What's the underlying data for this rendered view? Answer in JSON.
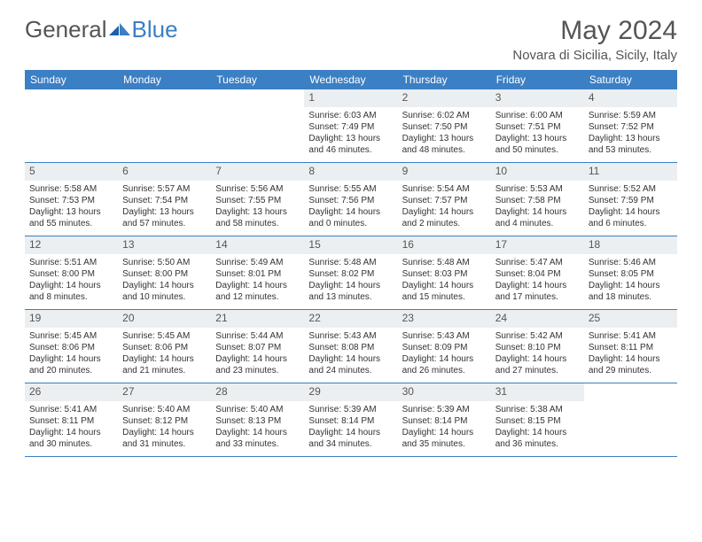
{
  "brand": {
    "part1": "General",
    "part2": "Blue"
  },
  "title": "May 2024",
  "location": "Novara di Sicilia, Sicily, Italy",
  "colors": {
    "header_bg": "#3b7fc4",
    "daynum_bg": "#eceff1",
    "border": "#3b7fc4",
    "text": "#333333",
    "muted": "#555555"
  },
  "day_headers": [
    "Sunday",
    "Monday",
    "Tuesday",
    "Wednesday",
    "Thursday",
    "Friday",
    "Saturday"
  ],
  "weeks": [
    [
      {
        "n": "",
        "sr": "",
        "ss": "",
        "dl": ""
      },
      {
        "n": "",
        "sr": "",
        "ss": "",
        "dl": ""
      },
      {
        "n": "",
        "sr": "",
        "ss": "",
        "dl": ""
      },
      {
        "n": "1",
        "sr": "6:03 AM",
        "ss": "7:49 PM",
        "dl": "13 hours and 46 minutes."
      },
      {
        "n": "2",
        "sr": "6:02 AM",
        "ss": "7:50 PM",
        "dl": "13 hours and 48 minutes."
      },
      {
        "n": "3",
        "sr": "6:00 AM",
        "ss": "7:51 PM",
        "dl": "13 hours and 50 minutes."
      },
      {
        "n": "4",
        "sr": "5:59 AM",
        "ss": "7:52 PM",
        "dl": "13 hours and 53 minutes."
      }
    ],
    [
      {
        "n": "5",
        "sr": "5:58 AM",
        "ss": "7:53 PM",
        "dl": "13 hours and 55 minutes."
      },
      {
        "n": "6",
        "sr": "5:57 AM",
        "ss": "7:54 PM",
        "dl": "13 hours and 57 minutes."
      },
      {
        "n": "7",
        "sr": "5:56 AM",
        "ss": "7:55 PM",
        "dl": "13 hours and 58 minutes."
      },
      {
        "n": "8",
        "sr": "5:55 AM",
        "ss": "7:56 PM",
        "dl": "14 hours and 0 minutes."
      },
      {
        "n": "9",
        "sr": "5:54 AM",
        "ss": "7:57 PM",
        "dl": "14 hours and 2 minutes."
      },
      {
        "n": "10",
        "sr": "5:53 AM",
        "ss": "7:58 PM",
        "dl": "14 hours and 4 minutes."
      },
      {
        "n": "11",
        "sr": "5:52 AM",
        "ss": "7:59 PM",
        "dl": "14 hours and 6 minutes."
      }
    ],
    [
      {
        "n": "12",
        "sr": "5:51 AM",
        "ss": "8:00 PM",
        "dl": "14 hours and 8 minutes."
      },
      {
        "n": "13",
        "sr": "5:50 AM",
        "ss": "8:00 PM",
        "dl": "14 hours and 10 minutes."
      },
      {
        "n": "14",
        "sr": "5:49 AM",
        "ss": "8:01 PM",
        "dl": "14 hours and 12 minutes."
      },
      {
        "n": "15",
        "sr": "5:48 AM",
        "ss": "8:02 PM",
        "dl": "14 hours and 13 minutes."
      },
      {
        "n": "16",
        "sr": "5:48 AM",
        "ss": "8:03 PM",
        "dl": "14 hours and 15 minutes."
      },
      {
        "n": "17",
        "sr": "5:47 AM",
        "ss": "8:04 PM",
        "dl": "14 hours and 17 minutes."
      },
      {
        "n": "18",
        "sr": "5:46 AM",
        "ss": "8:05 PM",
        "dl": "14 hours and 18 minutes."
      }
    ],
    [
      {
        "n": "19",
        "sr": "5:45 AM",
        "ss": "8:06 PM",
        "dl": "14 hours and 20 minutes."
      },
      {
        "n": "20",
        "sr": "5:45 AM",
        "ss": "8:06 PM",
        "dl": "14 hours and 21 minutes."
      },
      {
        "n": "21",
        "sr": "5:44 AM",
        "ss": "8:07 PM",
        "dl": "14 hours and 23 minutes."
      },
      {
        "n": "22",
        "sr": "5:43 AM",
        "ss": "8:08 PM",
        "dl": "14 hours and 24 minutes."
      },
      {
        "n": "23",
        "sr": "5:43 AM",
        "ss": "8:09 PM",
        "dl": "14 hours and 26 minutes."
      },
      {
        "n": "24",
        "sr": "5:42 AM",
        "ss": "8:10 PM",
        "dl": "14 hours and 27 minutes."
      },
      {
        "n": "25",
        "sr": "5:41 AM",
        "ss": "8:11 PM",
        "dl": "14 hours and 29 minutes."
      }
    ],
    [
      {
        "n": "26",
        "sr": "5:41 AM",
        "ss": "8:11 PM",
        "dl": "14 hours and 30 minutes."
      },
      {
        "n": "27",
        "sr": "5:40 AM",
        "ss": "8:12 PM",
        "dl": "14 hours and 31 minutes."
      },
      {
        "n": "28",
        "sr": "5:40 AM",
        "ss": "8:13 PM",
        "dl": "14 hours and 33 minutes."
      },
      {
        "n": "29",
        "sr": "5:39 AM",
        "ss": "8:14 PM",
        "dl": "14 hours and 34 minutes."
      },
      {
        "n": "30",
        "sr": "5:39 AM",
        "ss": "8:14 PM",
        "dl": "14 hours and 35 minutes."
      },
      {
        "n": "31",
        "sr": "5:38 AM",
        "ss": "8:15 PM",
        "dl": "14 hours and 36 minutes."
      },
      {
        "n": "",
        "sr": "",
        "ss": "",
        "dl": ""
      }
    ]
  ],
  "labels": {
    "sunrise": "Sunrise:",
    "sunset": "Sunset:",
    "daylight": "Daylight:"
  }
}
